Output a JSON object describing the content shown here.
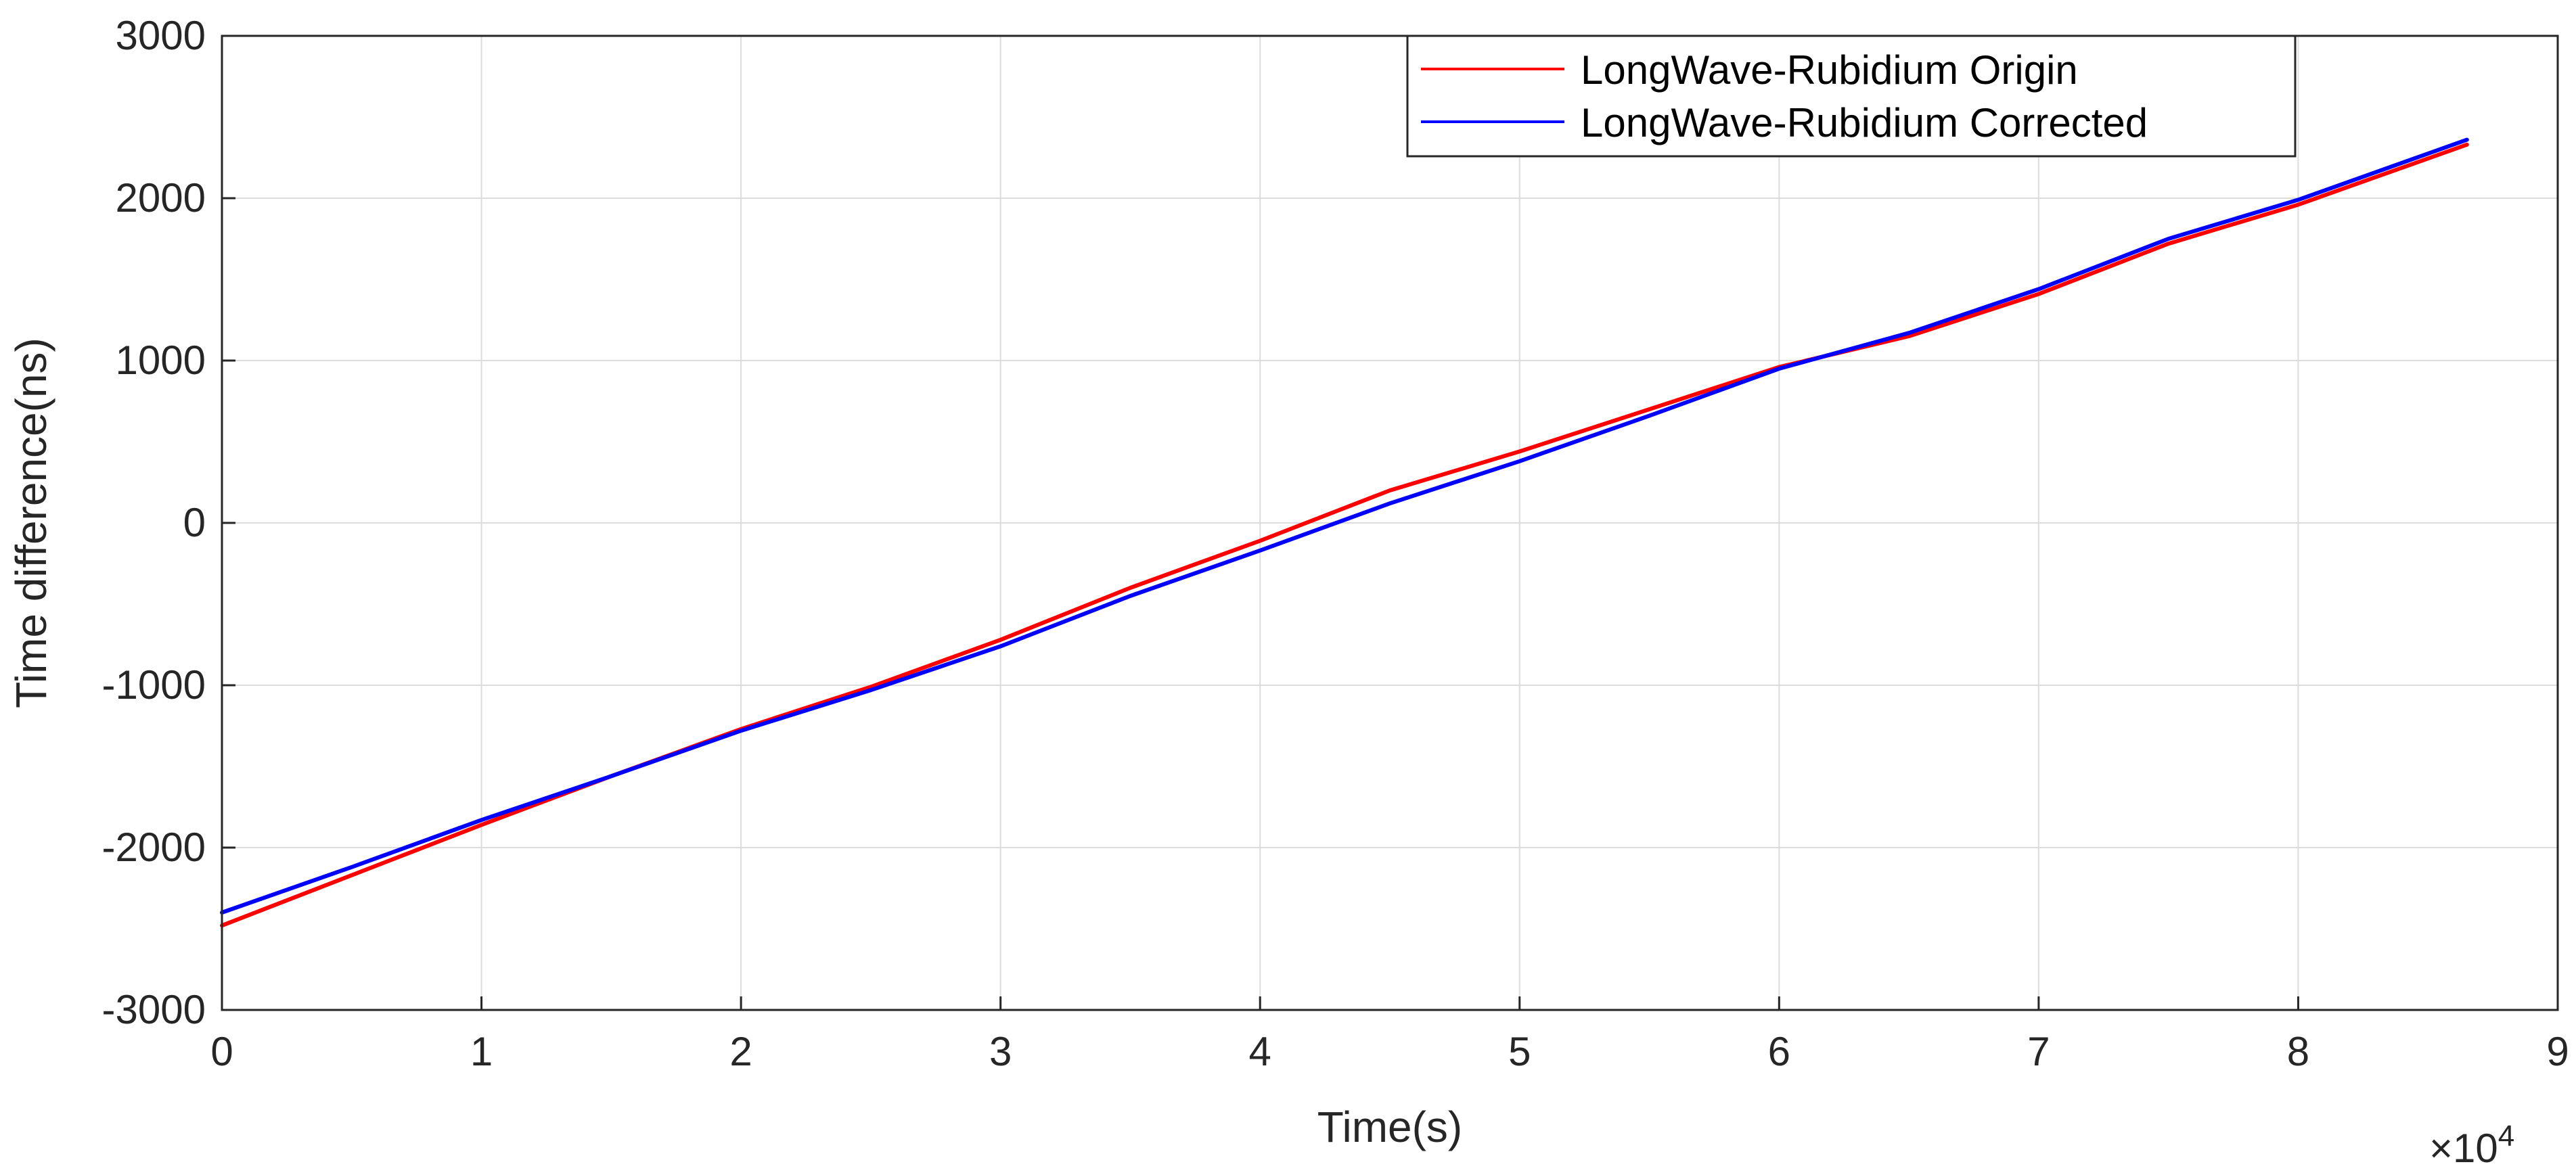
{
  "chart_data": {
    "type": "line",
    "title": "",
    "xlabel": "Time(s)",
    "ylabel": "Time difference(ns)",
    "x_exponent_label": "×10",
    "x_exponent_power": "4",
    "xlim": [
      0,
      9
    ],
    "ylim": [
      -3000,
      3000
    ],
    "x_ticks": [
      0,
      1,
      2,
      3,
      4,
      5,
      6,
      7,
      8,
      9
    ],
    "y_ticks": [
      -3000,
      -2000,
      -1000,
      0,
      1000,
      2000,
      3000
    ],
    "grid": true,
    "legend_position": "top-right",
    "series": [
      {
        "name": "LongWave-Rubidium Origin",
        "color": "#ff0000",
        "x": [
          0,
          0.5,
          1,
          1.5,
          2,
          2.5,
          3,
          3.5,
          4,
          4.5,
          5,
          5.5,
          6,
          6.5,
          7,
          7.5,
          8,
          8.65
        ],
        "y": [
          -2480,
          -2170,
          -1860,
          -1560,
          -1270,
          -1010,
          -720,
          -400,
          -110,
          200,
          440,
          700,
          960,
          1150,
          1410,
          1720,
          1960,
          2330
        ]
      },
      {
        "name": "LongWave-Rubidium Corrected",
        "color": "#0000ff",
        "x": [
          0,
          0.5,
          1,
          1.5,
          2,
          2.5,
          3,
          3.5,
          4,
          4.5,
          5,
          5.5,
          6,
          6.5,
          7,
          7.5,
          8,
          8.65
        ],
        "y": [
          -2400,
          -2120,
          -1830,
          -1560,
          -1280,
          -1030,
          -760,
          -450,
          -170,
          120,
          380,
          660,
          950,
          1170,
          1440,
          1750,
          1990,
          2360
        ]
      }
    ]
  }
}
